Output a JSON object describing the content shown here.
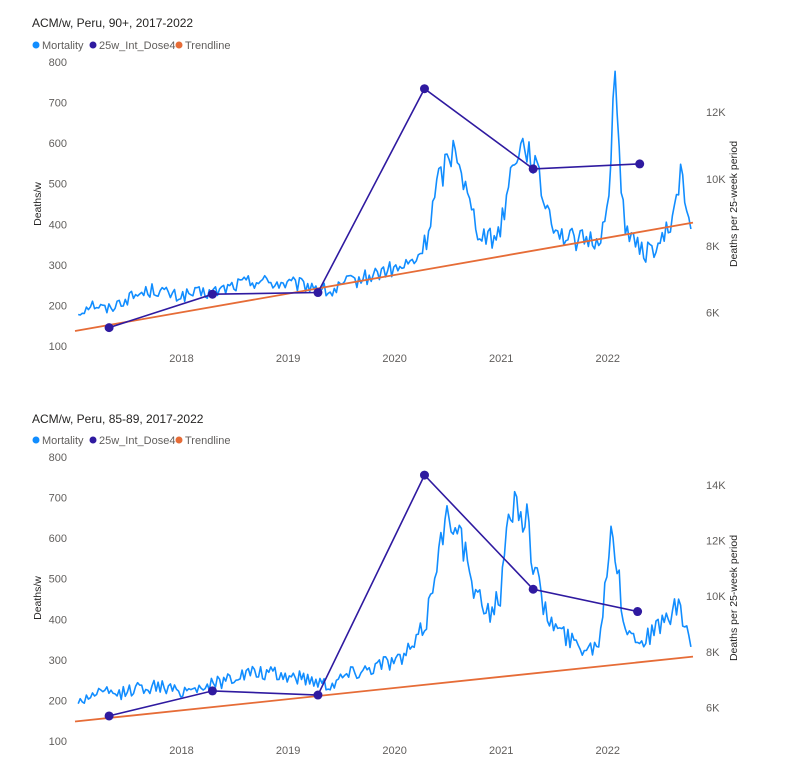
{
  "chart_data": [
    {
      "type": "line",
      "title": "ACM/w, Peru, 90+, 2017-2022",
      "legend": [
        {
          "name": "Mortality",
          "color": "#118dff"
        },
        {
          "name": "25w_Int_Dose4",
          "color": "#2f1aa0"
        },
        {
          "name": "Trendline",
          "color": "#e66c37"
        }
      ],
      "legend_position": "top-left",
      "ylabel": "Deaths/w",
      "y2label": "Deaths per 25-week period",
      "x_ticks": [
        "2018",
        "2019",
        "2020",
        "2021",
        "2022"
      ],
      "x_range": [
        2017.0,
        2022.8
      ],
      "ylim": [
        100,
        800
      ],
      "y_ticks": [
        "100",
        "200",
        "300",
        "400",
        "500",
        "600",
        "700",
        "800"
      ],
      "y2lim": [
        5000,
        13500
      ],
      "y2_ticks": [
        {
          "value": 6000,
          "label": "6K"
        },
        {
          "value": 8000,
          "label": "8K"
        },
        {
          "value": 10000,
          "label": "10K"
        },
        {
          "value": 12000,
          "label": "12K"
        }
      ],
      "grid": false,
      "mortality_profile": [
        [
          2017.03,
          180
        ],
        [
          2017.15,
          205
        ],
        [
          2017.3,
          190
        ],
        [
          2017.45,
          212
        ],
        [
          2017.6,
          228
        ],
        [
          2017.75,
          240
        ],
        [
          2017.95,
          222
        ],
        [
          2018.1,
          228
        ],
        [
          2018.3,
          232
        ],
        [
          2018.5,
          250
        ],
        [
          2018.7,
          262
        ],
        [
          2018.9,
          255
        ],
        [
          2019.1,
          250
        ],
        [
          2019.25,
          248
        ],
        [
          2019.4,
          230
        ],
        [
          2019.55,
          255
        ],
        [
          2019.75,
          270
        ],
        [
          2019.9,
          285
        ],
        [
          2020.05,
          290
        ],
        [
          2020.2,
          310
        ],
        [
          2020.3,
          360
        ],
        [
          2020.4,
          500
        ],
        [
          2020.5,
          560
        ],
        [
          2020.58,
          600
        ],
        [
          2020.68,
          470
        ],
        [
          2020.78,
          390
        ],
        [
          2020.92,
          360
        ],
        [
          2021.0,
          400
        ],
        [
          2021.07,
          500
        ],
        [
          2021.13,
          580
        ],
        [
          2021.22,
          600
        ],
        [
          2021.3,
          560
        ],
        [
          2021.38,
          480
        ],
        [
          2021.48,
          410
        ],
        [
          2021.58,
          370
        ],
        [
          2021.72,
          360
        ],
        [
          2021.9,
          360
        ],
        [
          2021.98,
          400
        ],
        [
          2022.03,
          570
        ],
        [
          2022.07,
          770
        ],
        [
          2022.1,
          600
        ],
        [
          2022.16,
          400
        ],
        [
          2022.25,
          350
        ],
        [
          2022.35,
          330
        ],
        [
          2022.5,
          350
        ],
        [
          2022.62,
          420
        ],
        [
          2022.68,
          540
        ],
        [
          2022.73,
          440
        ],
        [
          2022.78,
          390
        ]
      ],
      "mortality_noise": 22,
      "dose4_series": {
        "name": "25w_Int_Dose4",
        "x": [
          2017.32,
          2018.29,
          2019.28,
          2020.28,
          2021.3,
          2022.3
        ],
        "y2": [
          5550,
          6550,
          6600,
          12700,
          10300,
          10450
        ]
      },
      "trendline": {
        "name": "Trendline",
        "x": [
          2017.0,
          2022.8
        ],
        "y": [
          137,
          404
        ]
      }
    },
    {
      "type": "line",
      "title": "ACM/w, Peru, 85-89, 2017-2022",
      "legend": [
        {
          "name": "Mortality",
          "color": "#118dff"
        },
        {
          "name": "25w_Int_Dose4",
          "color": "#2f1aa0"
        },
        {
          "name": "Trendline",
          "color": "#e66c37"
        }
      ],
      "legend_position": "top-left",
      "ylabel": "Deaths/w",
      "y2label": "Deaths per 25-week period",
      "x_ticks": [
        "2018",
        "2019",
        "2020",
        "2021",
        "2022"
      ],
      "x_range": [
        2017.0,
        2022.8
      ],
      "ylim": [
        100,
        800
      ],
      "y_ticks": [
        "100",
        "200",
        "300",
        "400",
        "500",
        "600",
        "700",
        "800"
      ],
      "y2lim": [
        4800,
        15000
      ],
      "y2_ticks": [
        {
          "value": 6000,
          "label": "6K"
        },
        {
          "value": 8000,
          "label": "8K"
        },
        {
          "value": 10000,
          "label": "10K"
        },
        {
          "value": 12000,
          "label": "12K"
        },
        {
          "value": 14000,
          "label": "14K"
        }
      ],
      "grid": false,
      "mortality_profile": [
        [
          2017.03,
          195
        ],
        [
          2017.2,
          220
        ],
        [
          2017.4,
          215
        ],
        [
          2017.6,
          232
        ],
        [
          2017.8,
          235
        ],
        [
          2017.95,
          222
        ],
        [
          2018.1,
          230
        ],
        [
          2018.3,
          240
        ],
        [
          2018.5,
          260
        ],
        [
          2018.7,
          268
        ],
        [
          2018.9,
          262
        ],
        [
          2019.1,
          258
        ],
        [
          2019.25,
          250
        ],
        [
          2019.4,
          240
        ],
        [
          2019.55,
          265
        ],
        [
          2019.75,
          280
        ],
        [
          2019.9,
          295
        ],
        [
          2020.05,
          300
        ],
        [
          2020.2,
          340
        ],
        [
          2020.3,
          400
        ],
        [
          2020.4,
          560
        ],
        [
          2020.5,
          650
        ],
        [
          2020.58,
          660
        ],
        [
          2020.66,
          560
        ],
        [
          2020.76,
          450
        ],
        [
          2020.9,
          420
        ],
        [
          2021.0,
          470
        ],
        [
          2021.06,
          620
        ],
        [
          2021.1,
          680
        ],
        [
          2021.16,
          690
        ],
        [
          2021.24,
          640
        ],
        [
          2021.32,
          520
        ],
        [
          2021.42,
          410
        ],
        [
          2021.55,
          370
        ],
        [
          2021.7,
          340
        ],
        [
          2021.85,
          330
        ],
        [
          2021.93,
          360
        ],
        [
          2021.98,
          500
        ],
        [
          2022.03,
          650
        ],
        [
          2022.08,
          540
        ],
        [
          2022.15,
          400
        ],
        [
          2022.25,
          350
        ],
        [
          2022.4,
          360
        ],
        [
          2022.55,
          400
        ],
        [
          2022.65,
          430
        ],
        [
          2022.72,
          390
        ],
        [
          2022.78,
          345
        ]
      ],
      "mortality_noise": 22,
      "dose4_series": {
        "name": "25w_Int_Dose4",
        "x": [
          2017.32,
          2018.29,
          2019.28,
          2020.28,
          2021.3,
          2022.28
        ],
        "y2": [
          5700,
          6600,
          6450,
          14350,
          10250,
          9450
        ]
      },
      "trendline": {
        "name": "Trendline",
        "x": [
          2017.0,
          2022.8
        ],
        "y": [
          148,
          308
        ]
      }
    }
  ]
}
